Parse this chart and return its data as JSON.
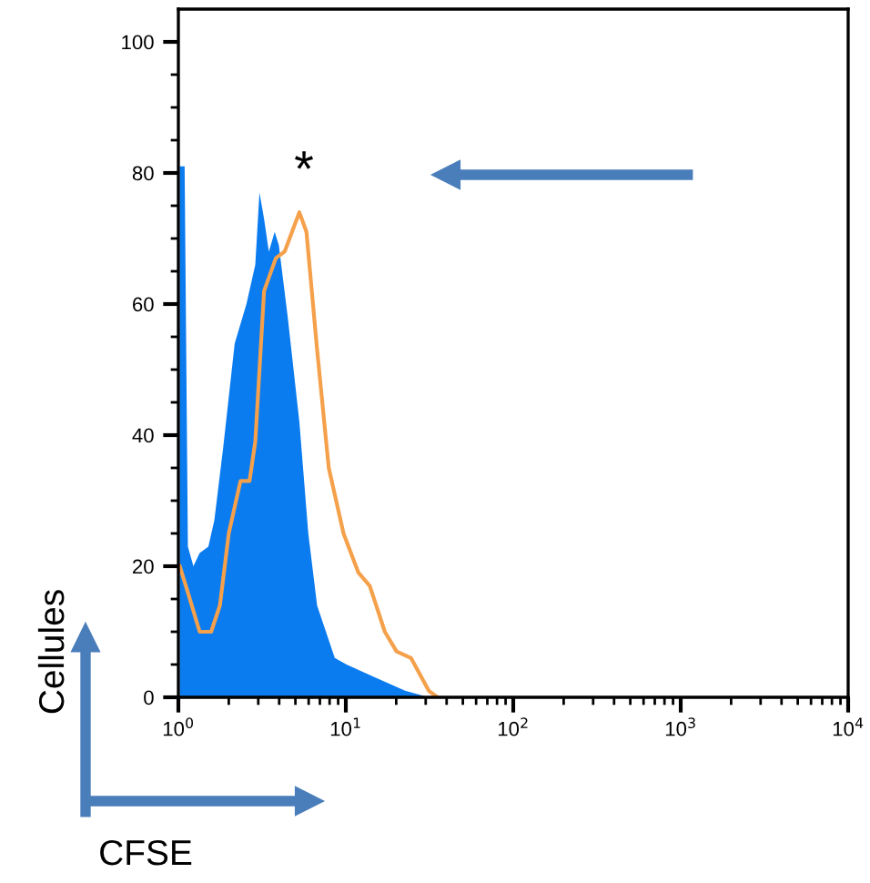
{
  "chart_data": {
    "type": "area",
    "xlabel": "CFSE",
    "ylabel": "Cellules",
    "log": "x",
    "xlim": [
      1,
      10000
    ],
    "xticks": [
      {
        "value": 1,
        "label": "10$^{0}$"
      },
      {
        "value": 10,
        "label": "10$^{1}$"
      },
      {
        "value": 100,
        "label": "10$^{2}$"
      },
      {
        "value": 1000,
        "label": "10$^{3}$"
      },
      {
        "value": 10000,
        "label": "10$^{4}$"
      }
    ],
    "ylim": [
      0,
      105
    ],
    "yticks": [
      0,
      20,
      40,
      60,
      80,
      100
    ],
    "grid": false,
    "annotations": [
      "*"
    ],
    "series": [
      {
        "color": "#0a7cf0",
        "x": [
          1.02,
          1.09,
          1.14,
          1.23,
          1.34,
          1.51,
          1.64,
          1.85,
          2.17,
          2.55,
          2.88,
          3.05,
          3.25,
          3.47,
          3.76,
          3.98,
          4.5,
          5.28,
          5.97,
          6.74,
          8.59,
          10.1,
          15.1,
          22.6,
          31.3
        ],
        "values": [
          81,
          81,
          23,
          20,
          22,
          23,
          27,
          38,
          54,
          60,
          66,
          77,
          73,
          68,
          71,
          69,
          58,
          42,
          25,
          14,
          6,
          5,
          3,
          1,
          0
        ]
      },
      {
        "type": "line",
        "color": "#f5a04a",
        "x": [
          1.02,
          1.14,
          1.34,
          1.57,
          1.77,
          2.0,
          2.35,
          2.66,
          2.88,
          3.25,
          3.82,
          4.31,
          5.28,
          5.82,
          6.74,
          7.91,
          9.69,
          11.9,
          13.9,
          17.1,
          20.1,
          24.5,
          31.3,
          35.3
        ],
        "values": [
          20,
          16,
          10,
          10,
          14,
          25,
          33,
          33,
          39,
          62,
          67,
          68,
          74,
          71,
          53,
          35,
          25,
          19,
          17,
          10,
          7,
          6,
          1,
          0
        ]
      }
    ]
  }
}
